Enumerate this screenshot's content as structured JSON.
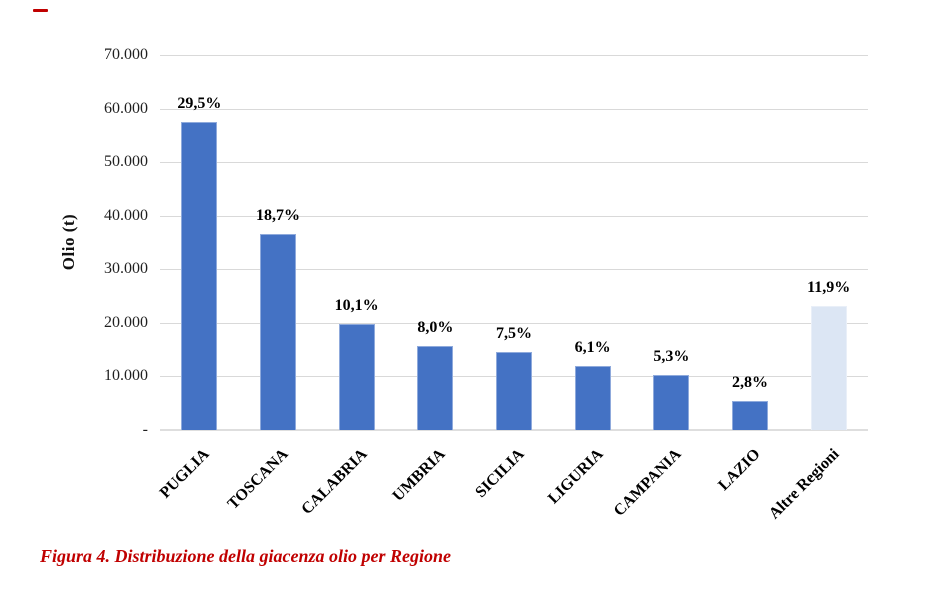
{
  "page": {
    "background": "#FFFFFF"
  },
  "stray_mark": {
    "shape": "small-dash",
    "color": "#C00000"
  },
  "chart_data": {
    "type": "bar",
    "title": "",
    "xlabel": "",
    "ylabel": "Olio (t)",
    "categories": [
      "PUGLIA",
      "TOSCANA",
      "CALABRIA",
      "UMBRIA",
      "SICILIA",
      "LIGURIA",
      "CAMPANIA",
      "LAZIO",
      "Altre Regioni"
    ],
    "values": [
      57500,
      36500,
      19700,
      15600,
      14600,
      11900,
      10300,
      5500,
      23200
    ],
    "data_labels": [
      "29,5%",
      "18,7%",
      "10,1%",
      "8,0%",
      "7,5%",
      "6,1%",
      "5,3%",
      "2,8%",
      "11,9%"
    ],
    "bar_fills": [
      "#4472C4",
      "#4472C4",
      "#4472C4",
      "#4472C4",
      "#4472C4",
      "#4472C4",
      "#4472C4",
      "#4472C4",
      "#DCE6F4"
    ],
    "bar_borders": [
      "#8FAADC",
      "#8FAADC",
      "#8FAADC",
      "#8FAADC",
      "#8FAADC",
      "#8FAADC",
      "#8FAADC",
      "#8FAADC",
      "#E9EFF8"
    ],
    "ylim": [
      0,
      70000
    ],
    "ytick_step": 10000,
    "ytick_labels": [
      "70.000",
      "60.000",
      "50.000",
      "40.000",
      "30.000",
      "20.000",
      "10.000",
      "-"
    ],
    "grid": true,
    "legend": false,
    "gridline_color": "#D9D9D9",
    "axisline_color": "#DEDEDE",
    "tick_text_color": "#1F1F1F",
    "data_label_color": "#000000"
  },
  "caption": {
    "text": "Figura 4. Distribuzione della giacenza olio per Regione",
    "color": "#C00000"
  }
}
